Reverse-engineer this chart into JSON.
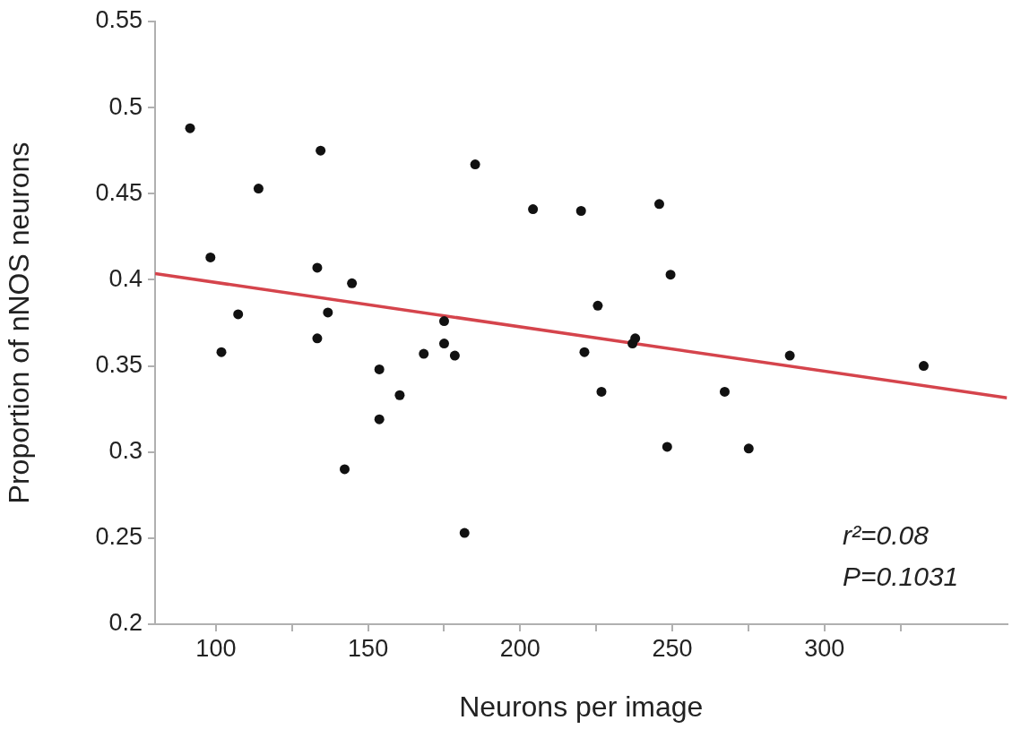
{
  "chart_data": {
    "type": "scatter",
    "xlabel": "Neurons per image",
    "ylabel": "Proportion of nNOS neurons",
    "xlim": [
      80,
      360
    ],
    "xticks": [
      100,
      {
        "value": 125,
        "label": null
      },
      150,
      {
        "value": 175,
        "label": null
      },
      200,
      {
        "value": 225,
        "label": null
      },
      250,
      {
        "value": 275,
        "label": null
      },
      300,
      {
        "value": 325,
        "label": null
      }
    ],
    "ylim": [
      0.2,
      0.55
    ],
    "yticks": [
      0.2,
      0.25,
      0.3,
      0.35,
      0.4,
      0.45,
      0.5,
      0.55
    ],
    "grid": false,
    "legend": false,
    "marker": "circle",
    "series": [
      {
        "type": "scatter",
        "color": "#111111",
        "x": [
          91.5,
          98.2,
          101.8,
          107.3,
          114.0,
          133.3,
          133.3,
          134.4,
          136.8,
          142.3,
          144.7,
          153.7,
          153.7,
          160.4,
          168.3,
          175.0,
          175.0,
          178.5,
          181.7,
          185.2,
          204.2,
          220.0,
          221.1,
          225.5,
          226.7,
          236.9,
          237.8,
          245.7,
          248.3,
          249.4,
          267.2,
          275.1,
          288.6,
          332.6
        ],
        "values": [
          0.488,
          0.413,
          0.358,
          0.38,
          0.453,
          0.407,
          0.366,
          0.475,
          0.381,
          0.29,
          0.398,
          0.348,
          0.319,
          0.333,
          0.357,
          0.376,
          0.363,
          0.356,
          0.253,
          0.467,
          0.441,
          0.44,
          0.358,
          0.385,
          0.335,
          0.363,
          0.366,
          0.444,
          0.303,
          0.403,
          0.335,
          0.302,
          0.356,
          0.35
        ]
      },
      {
        "type": "line",
        "color": "#d5444c",
        "x": [
          80,
          360
        ],
        "values": [
          0.4036,
          0.3315
        ],
        "marker": "none",
        "line_style": "solid"
      }
    ],
    "annotations": [
      "r²=0.08",
      "P=0.1031"
    ]
  }
}
